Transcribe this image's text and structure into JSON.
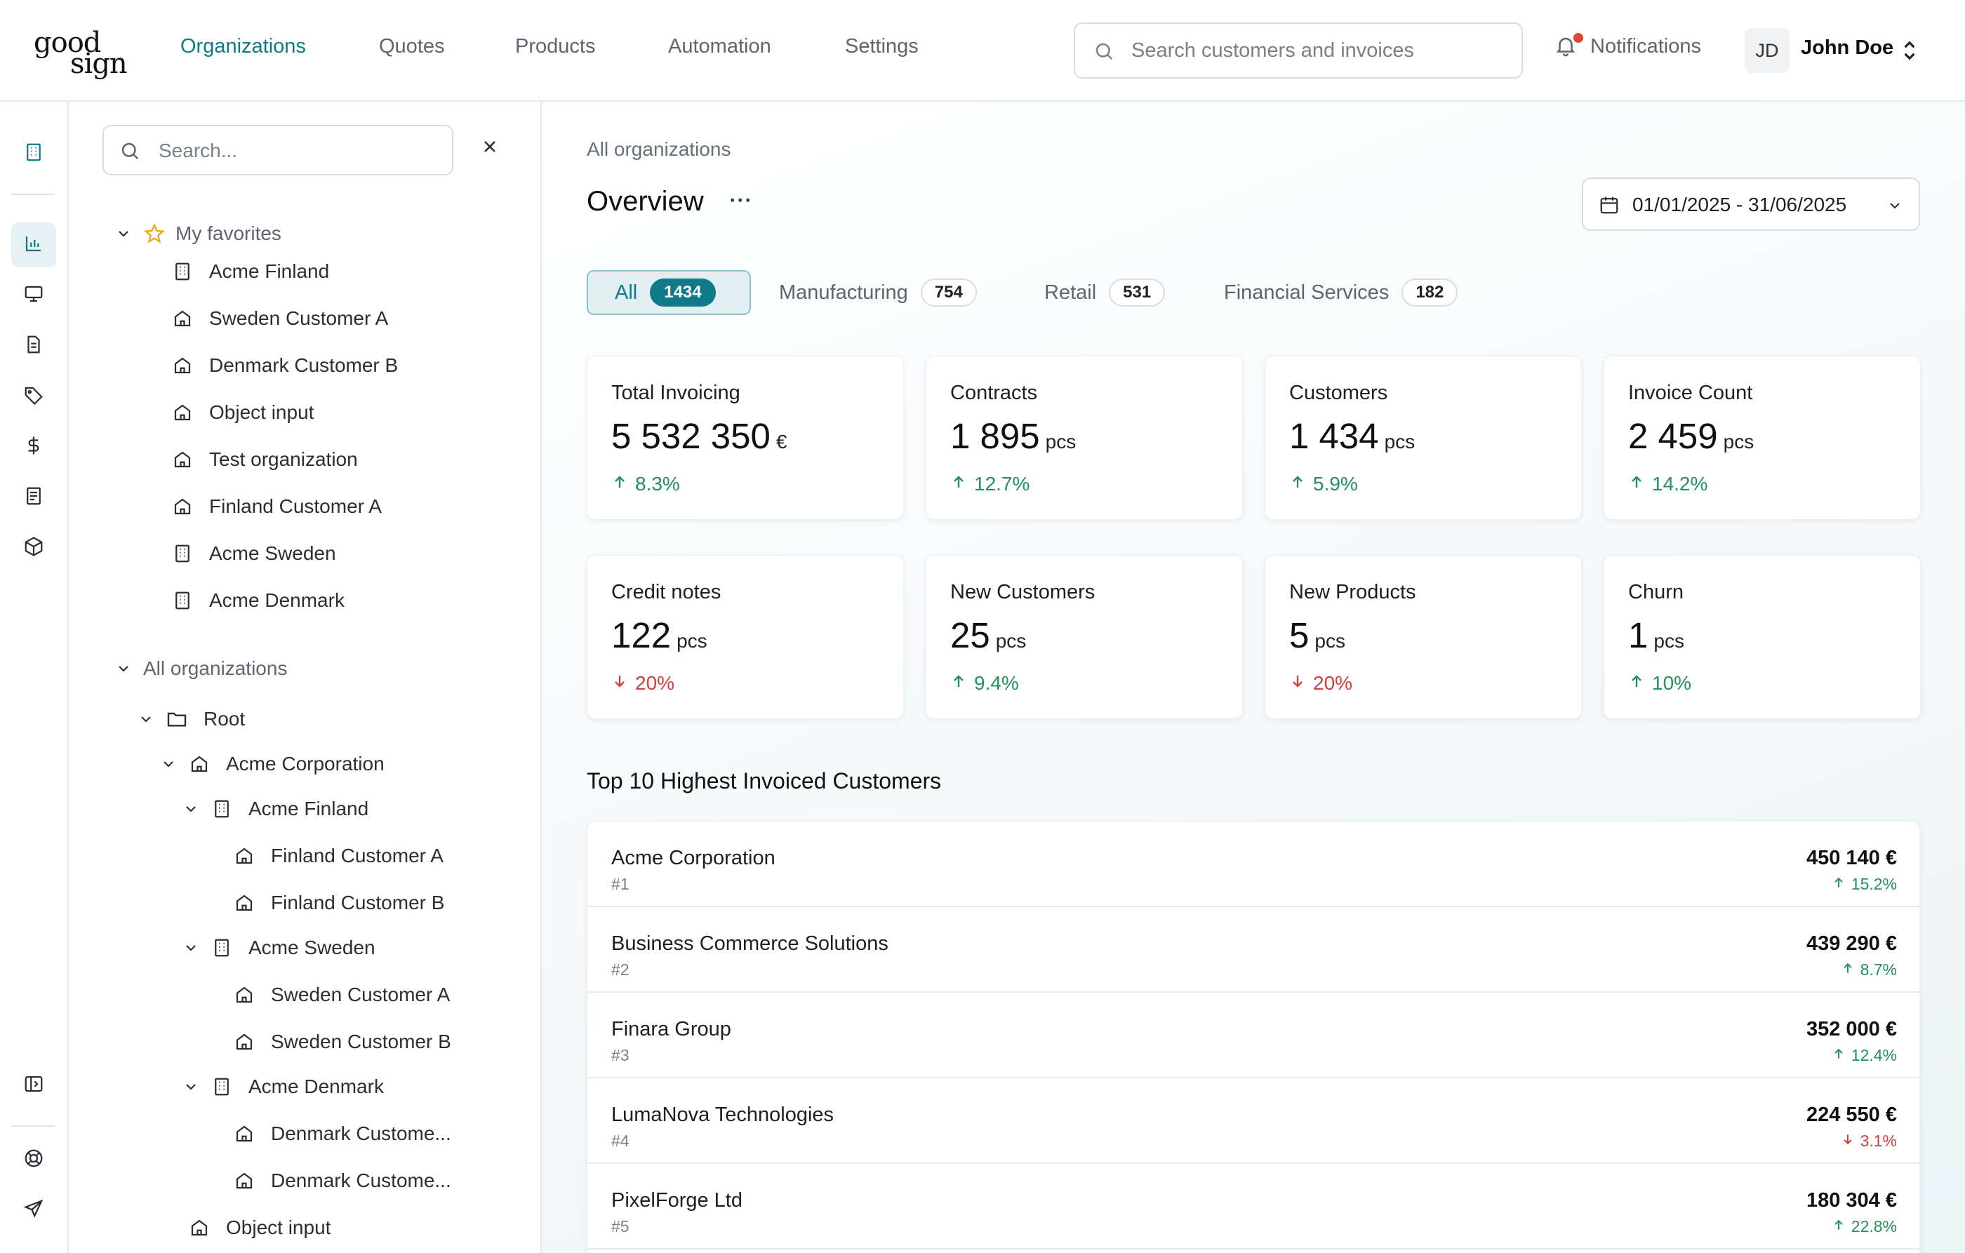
{
  "brand": {
    "line1": "good",
    "line2": "sign"
  },
  "nav": {
    "items": [
      {
        "label": "Organizations",
        "active": true
      },
      {
        "label": "Quotes"
      },
      {
        "label": "Products"
      },
      {
        "label": "Automation"
      },
      {
        "label": "Settings"
      }
    ]
  },
  "header": {
    "search_placeholder": "Search customers and invoices",
    "notifications_label": "Notifications",
    "user_initials": "JD",
    "user_name": "John Doe"
  },
  "rail": {
    "icons": [
      "building-icon",
      "bar-chart-icon",
      "monitor-icon",
      "document-icon",
      "tag-icon",
      "dollar-icon",
      "receipt-icon",
      "package-icon",
      "sidebar-toggle-icon",
      "help-icon",
      "send-icon"
    ],
    "active": "bar-chart-icon"
  },
  "tree": {
    "search_placeholder": "Search...",
    "favorites_label": "My favorites",
    "favorites": [
      {
        "label": "Acme Finland",
        "icon": "building-icon"
      },
      {
        "label": "Sweden Customer A",
        "icon": "home-icon"
      },
      {
        "label": "Denmark Customer B",
        "icon": "home-icon"
      },
      {
        "label": "Object input",
        "icon": "home-icon"
      },
      {
        "label": "Test organization",
        "icon": "home-icon"
      },
      {
        "label": "Finland Customer A",
        "icon": "home-icon"
      },
      {
        "label": "Acme Sweden",
        "icon": "building-icon"
      },
      {
        "label": "Acme Denmark",
        "icon": "building-icon"
      }
    ],
    "all_label": "All organizations",
    "all": [
      {
        "label": "Root",
        "icon": "folder-icon",
        "depth": 0,
        "expanded": true
      },
      {
        "label": "Acme Corporation",
        "icon": "home-icon",
        "depth": 1,
        "expanded": true
      },
      {
        "label": "Acme Finland",
        "icon": "building-icon",
        "depth": 2,
        "expanded": true
      },
      {
        "label": "Finland Customer A",
        "icon": "home-icon",
        "depth": 3
      },
      {
        "label": "Finland Customer B",
        "icon": "home-icon",
        "depth": 3
      },
      {
        "label": "Acme Sweden",
        "icon": "building-icon",
        "depth": 2,
        "expanded": true
      },
      {
        "label": "Sweden Customer A",
        "icon": "home-icon",
        "depth": 3
      },
      {
        "label": "Sweden Customer B",
        "icon": "home-icon",
        "depth": 3
      },
      {
        "label": "Acme Denmark",
        "icon": "building-icon",
        "depth": 2,
        "expanded": true
      },
      {
        "label": "Denmark Custome...",
        "icon": "home-icon",
        "depth": 3
      },
      {
        "label": "Denmark Custome...",
        "icon": "home-icon",
        "depth": 3
      },
      {
        "label": "Object input",
        "icon": "home-icon",
        "depth": 1
      }
    ]
  },
  "main": {
    "breadcrumb": "All organizations",
    "title": "Overview",
    "more_label": "···",
    "date_range": "01/01/2025 - 31/06/2025",
    "filters": [
      {
        "label": "All",
        "count": "1434",
        "active": true
      },
      {
        "label": "Manufacturing",
        "count": "754"
      },
      {
        "label": "Retail",
        "count": "531"
      },
      {
        "label": "Financial Services",
        "count": "182"
      }
    ],
    "kpis": [
      {
        "title": "Total Invoicing",
        "value": "5 532 350",
        "unit": "€",
        "change": "8.3%",
        "direction": "up"
      },
      {
        "title": "Contracts",
        "value": "1 895",
        "unit": "pcs",
        "change": "12.7%",
        "direction": "up"
      },
      {
        "title": "Customers",
        "value": "1 434",
        "unit": "pcs",
        "change": "5.9%",
        "direction": "up"
      },
      {
        "title": "Invoice Count",
        "value": "2 459",
        "unit": "pcs",
        "change": "14.2%",
        "direction": "up"
      },
      {
        "title": "Credit notes",
        "value": "122",
        "unit": "pcs",
        "change": "20%",
        "direction": "down"
      },
      {
        "title": "New Customers",
        "value": "25",
        "unit": "pcs",
        "change": "9.4%",
        "direction": "up"
      },
      {
        "title": "New Products",
        "value": "5",
        "unit": "pcs",
        "change": "20%",
        "direction": "down"
      },
      {
        "title": "Churn",
        "value": "1",
        "unit": "pcs",
        "change": "10%",
        "direction": "up"
      }
    ],
    "top_title": "Top 10 Highest Invoiced Customers",
    "top_customers": [
      {
        "name": "Acme Corporation",
        "rank": "#1",
        "amount": "450 140 €",
        "change": "15.2%",
        "direction": "up"
      },
      {
        "name": "Business Commerce Solutions",
        "rank": "#2",
        "amount": "439 290 €",
        "change": "8.7%",
        "direction": "up"
      },
      {
        "name": "Finara Group",
        "rank": "#3",
        "amount": "352 000 €",
        "change": "12.4%",
        "direction": "up"
      },
      {
        "name": "LumaNova Technologies",
        "rank": "#4",
        "amount": "224 550 €",
        "change": "3.1%",
        "direction": "down"
      },
      {
        "name": "PixelForge Ltd",
        "rank": "#5",
        "amount": "180 304 €",
        "change": "22.8%",
        "direction": "up"
      }
    ]
  },
  "colors": {
    "accent": "#0e7a8a",
    "up": "#23915a",
    "down": "#d0403a",
    "star": "#e6a817"
  }
}
